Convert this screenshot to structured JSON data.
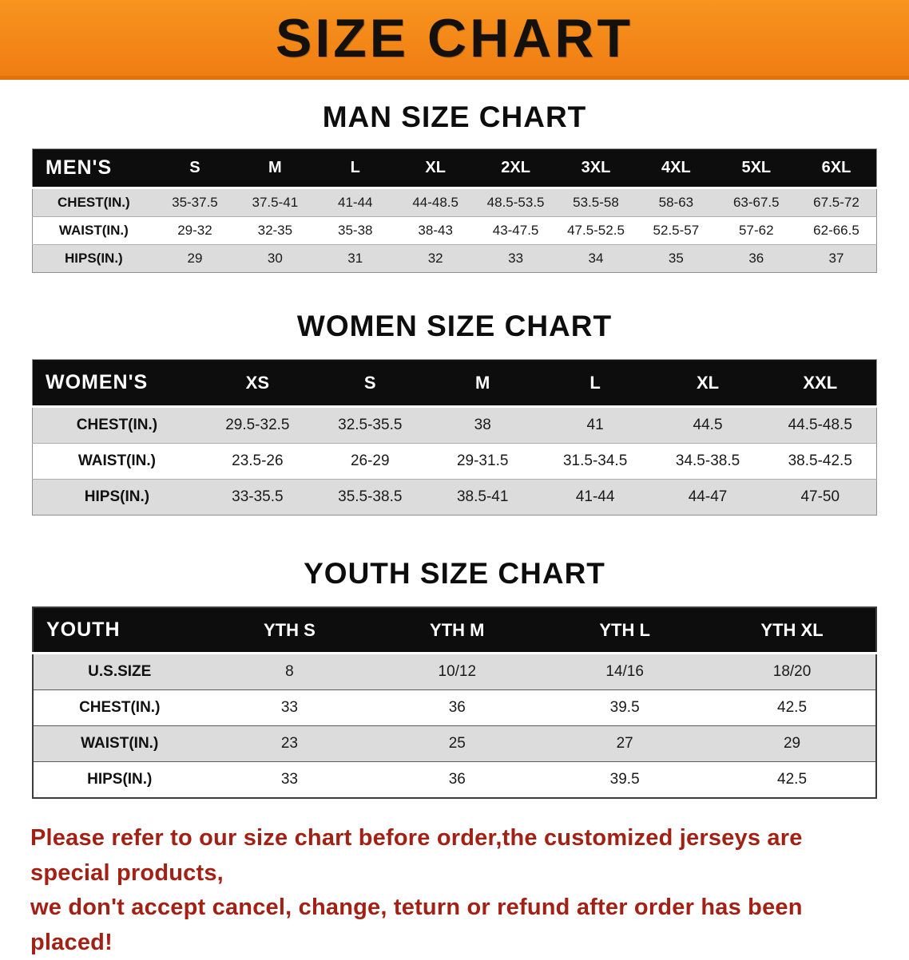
{
  "banner": {
    "title": "SIZE CHART",
    "bg_color": "#f5861e"
  },
  "sections": [
    {
      "heading": "MAN SIZE CHART",
      "table": {
        "header": [
          "MEN'S",
          "S",
          "M",
          "L",
          "XL",
          "2XL",
          "3XL",
          "4XL",
          "5XL",
          "6XL"
        ],
        "rows": [
          [
            "CHEST(IN.)",
            "35-37.5",
            "37.5-41",
            "41-44",
            "44-48.5",
            "48.5-53.5",
            "53.5-58",
            "58-63",
            "63-67.5",
            "67.5-72"
          ],
          [
            "WAIST(IN.)",
            "29-32",
            "32-35",
            "35-38",
            "38-43",
            "43-47.5",
            "47.5-52.5",
            "52.5-57",
            "57-62",
            "62-66.5"
          ],
          [
            "HIPS(IN.)",
            "29",
            "30",
            "31",
            "32",
            "33",
            "34",
            "35",
            "36",
            "37"
          ]
        ]
      }
    },
    {
      "heading": "WOMEN SIZE CHART",
      "table": {
        "header": [
          "WOMEN'S",
          "XS",
          "S",
          "M",
          "L",
          "XL",
          "XXL"
        ],
        "rows": [
          [
            "CHEST(IN.)",
            "29.5-32.5",
            "32.5-35.5",
            "38",
            "41",
            "44.5",
            "44.5-48.5"
          ],
          [
            "WAIST(IN.)",
            "23.5-26",
            "26-29",
            "29-31.5",
            "31.5-34.5",
            "34.5-38.5",
            "38.5-42.5"
          ],
          [
            "HIPS(IN.)",
            "33-35.5",
            "35.5-38.5",
            "38.5-41",
            "41-44",
            "44-47",
            "47-50"
          ]
        ]
      }
    },
    {
      "heading": "YOUTH SIZE CHART",
      "table": {
        "header": [
          "YOUTH",
          "YTH S",
          "YTH M",
          "YTH L",
          "YTH XL"
        ],
        "rows": [
          [
            "U.S.SIZE",
            "8",
            "10/12",
            "14/16",
            "18/20"
          ],
          [
            "CHEST(IN.)",
            "33",
            "36",
            "39.5",
            "42.5"
          ],
          [
            "WAIST(IN.)",
            "23",
            "25",
            "27",
            "29"
          ],
          [
            "HIPS(IN.)",
            "33",
            "36",
            "39.5",
            "42.5"
          ]
        ]
      }
    }
  ],
  "disclaimer": {
    "line1": "Please refer to our size chart before order,the customized jerseys are special products,",
    "line2": "we don't accept cancel, change, teturn or refund after order has been placed!",
    "text_color": "#a32014"
  }
}
